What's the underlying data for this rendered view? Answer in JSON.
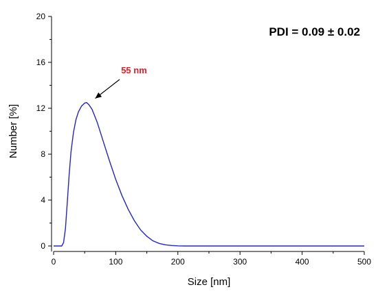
{
  "chart_data": {
    "type": "line",
    "title": "",
    "xlabel": "Size [nm]",
    "ylabel": "Number [%]",
    "xlim": [
      0,
      500
    ],
    "ylim": [
      0,
      20
    ],
    "x_ticks": [
      0,
      100,
      200,
      300,
      400,
      500
    ],
    "y_ticks": [
      0,
      4,
      8,
      12,
      16,
      20
    ],
    "grid": false,
    "series": [
      {
        "color": "#2424c8",
        "points": [
          [
            0,
            0
          ],
          [
            13,
            0
          ],
          [
            16,
            0.3
          ],
          [
            19,
            1.5
          ],
          [
            22,
            3.8
          ],
          [
            25,
            6.2
          ],
          [
            28,
            8.2
          ],
          [
            32,
            9.9
          ],
          [
            36,
            11.0
          ],
          [
            40,
            11.7
          ],
          [
            45,
            12.2
          ],
          [
            50,
            12.45
          ],
          [
            53,
            12.5
          ],
          [
            57,
            12.3
          ],
          [
            62,
            11.9
          ],
          [
            70,
            10.8
          ],
          [
            80,
            9.1
          ],
          [
            90,
            7.4
          ],
          [
            100,
            5.8
          ],
          [
            110,
            4.4
          ],
          [
            120,
            3.2
          ],
          [
            130,
            2.2
          ],
          [
            140,
            1.4
          ],
          [
            150,
            0.85
          ],
          [
            160,
            0.45
          ],
          [
            170,
            0.22
          ],
          [
            180,
            0.1
          ],
          [
            190,
            0.04
          ],
          [
            200,
            0.01
          ],
          [
            210,
            0
          ],
          [
            300,
            0
          ],
          [
            400,
            0
          ],
          [
            500,
            0
          ]
        ]
      }
    ],
    "annotations": [
      {
        "text": "55 nm",
        "color": "#e0202a",
        "arrow_to": [
          67,
          12.5
        ]
      },
      {
        "text": "PDI = 0.09 ± 0.02",
        "color": "#000000"
      }
    ]
  }
}
